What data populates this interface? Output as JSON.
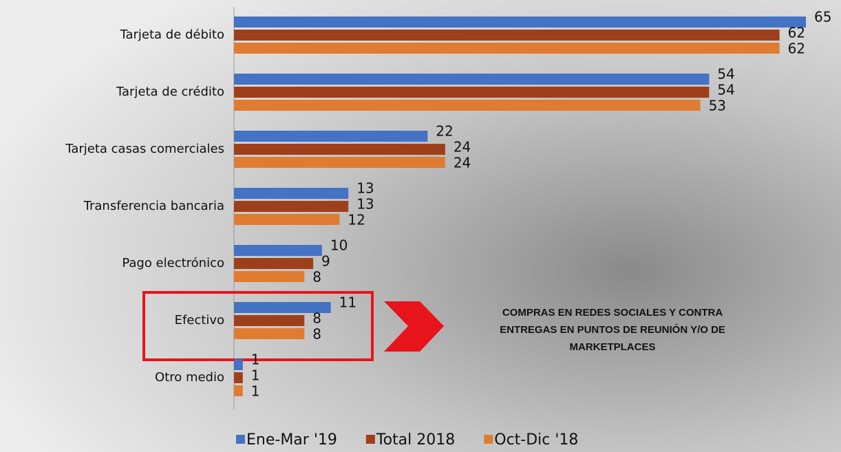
{
  "chart_data": {
    "type": "barh",
    "categories": [
      "Tarjeta de débito",
      "Tarjeta de crédito",
      "Tarjeta casas comerciales",
      "Transferencia bancaria",
      "Pago electrónico",
      "Efectivo",
      "Otro medio"
    ],
    "series": [
      {
        "name": "Ene-Mar '19",
        "color": "#4472c4",
        "values": [
          65,
          54,
          22,
          13,
          10,
          11,
          1
        ]
      },
      {
        "name": "Total 2018",
        "color": "#9e3f1c",
        "values": [
          62,
          54,
          24,
          13,
          9,
          8,
          1
        ]
      },
      {
        "name": "Oct-Dic '18",
        "color": "#e07b32",
        "values": [
          62,
          53,
          24,
          12,
          8,
          8,
          1
        ]
      }
    ],
    "annotation": [
      "COMPRAS EN REDES SOCIALES Y CONTRA",
      "ENTREGAS EN PUNTOS DE REUNIÓN Y/O DE",
      "MARKETPLACES"
    ],
    "legend": "bottom"
  }
}
